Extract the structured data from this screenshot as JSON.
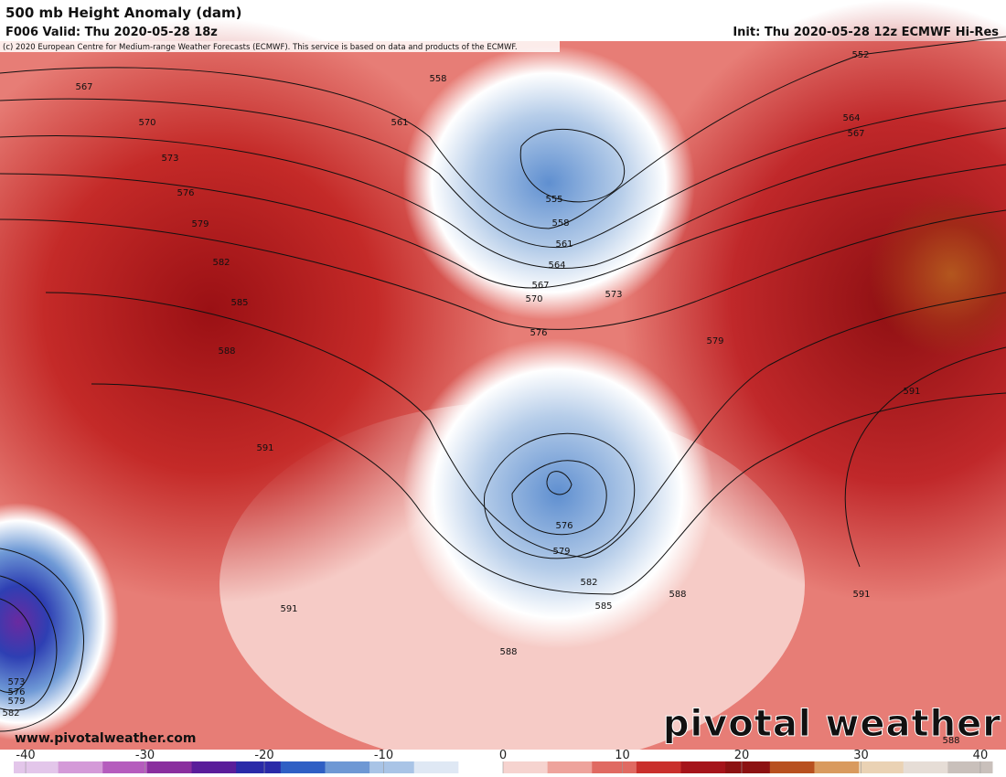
{
  "header": {
    "title": "500 mb Height Anomaly (dam)",
    "valid": "F006 Valid: Thu 2020-05-28 18z",
    "init": "Init: Thu 2020-05-28 12z ECMWF Hi-Res",
    "copyright": "(c) 2020 European Centre for Medium-range Weather Forecasts (ECMWF). This service is based on data and products of the ECMWF."
  },
  "contour_labels": [
    558,
    561,
    567,
    570,
    573,
    576,
    579,
    582,
    585,
    588,
    591,
    555,
    558,
    561,
    564,
    567,
    570,
    573,
    576,
    579,
    576,
    579,
    582,
    585,
    588,
    588,
    591,
    552,
    564,
    567,
    591,
    591,
    573,
    576,
    579,
    582,
    588
  ],
  "footer": {
    "website": "www.pivotalweather.com",
    "logo": "pivotal weather"
  },
  "colorbar": {
    "lim": [
      -41,
      41
    ],
    "ticks": [
      -40,
      -30,
      -20,
      -10,
      0,
      10,
      20,
      30,
      40
    ],
    "colors": [
      "#e3c6ea",
      "#d49ad8",
      "#b55cbd",
      "#8a2e9e",
      "#5a1d9a",
      "#2a2aa8",
      "#2f5fc4",
      "#6e98d4",
      "#a9c4e6",
      "#dfe8f4",
      "#ffffff",
      "#f6d3cf",
      "#eea39c",
      "#e06a62",
      "#c9302c",
      "#a5141a",
      "#8c1212",
      "#b8501f",
      "#d99a5e",
      "#ead2b4",
      "#e6ddd6",
      "#c9c0bb"
    ]
  }
}
